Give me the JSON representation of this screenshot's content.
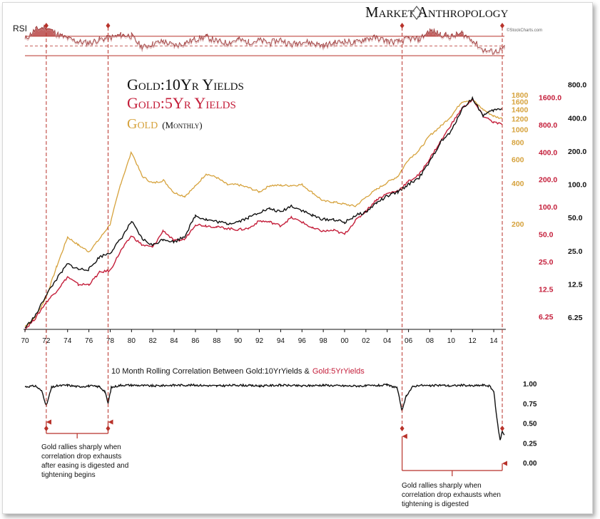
{
  "brand": {
    "name": "Market Anthropology",
    "watermark": "©StockCharts.com"
  },
  "colors": {
    "gold": "#d6a23c",
    "yield5": "#c41e3a",
    "yield10": "#111111",
    "guide": "#b8322a",
    "rsi_fill": "#b84545"
  },
  "chart_data": [
    {
      "type": "line",
      "title": "RSI",
      "ylim": [
        0,
        100
      ],
      "levels": [
        70,
        50,
        30
      ],
      "series": [
        {
          "name": "",
          "x": [
            1970,
            1971,
            1972,
            1973,
            1974,
            1975,
            1976,
            1977,
            1978,
            1979,
            1980,
            1981,
            1982,
            1983,
            1984,
            1985,
            1986,
            1987,
            1988,
            1989,
            1990,
            1991,
            1992,
            1993,
            1994,
            1995,
            1996,
            1997,
            1998,
            1999,
            2000,
            2001,
            2002,
            2003,
            2004,
            2005,
            2006,
            2007,
            2008,
            2009,
            2010,
            2011,
            2012,
            2013,
            2014,
            2015
          ],
          "values": [
            60,
            82,
            88,
            72,
            62,
            55,
            52,
            60,
            64,
            70,
            68,
            42,
            50,
            56,
            46,
            52,
            60,
            66,
            56,
            52,
            60,
            54,
            58,
            52,
            60,
            48,
            56,
            52,
            46,
            52,
            56,
            52,
            62,
            64,
            56,
            54,
            62,
            60,
            80,
            72,
            66,
            74,
            58,
            36,
            32,
            40
          ]
        }
      ]
    },
    {
      "type": "line",
      "title": "Gold:10Yr Yields / Gold:5Yr Yields / Gold (Monthly)",
      "xlabel": "",
      "ylabel": "",
      "log_scale": true,
      "x_ticks": [
        "70",
        "72",
        "74",
        "76",
        "78",
        "80",
        "82",
        "84",
        "86",
        "88",
        "90",
        "92",
        "94",
        "96",
        "98",
        "00",
        "02",
        "04",
        "06",
        "08",
        "10",
        "12",
        "14"
      ],
      "axis_gold_ticks": [
        "1800",
        "1600",
        "1400",
        "1200",
        "1000",
        "800",
        "600",
        "400",
        "200"
      ],
      "axis_5yr_ticks": [
        "1600.0",
        "800.0",
        "400.0",
        "200.0",
        "100.0",
        "50.0",
        "25.0",
        "12.5",
        "6.25"
      ],
      "axis_10yr_ticks": [
        "800.0",
        "400.0",
        "200.0",
        "100.0",
        "50.0",
        "25.0",
        "12.5",
        "6.25"
      ],
      "legend": [
        "Gold:10Yr Yields",
        "Gold:5Yr Yields",
        "Gold (Monthly)"
      ],
      "legend_note": "(Monthly)",
      "series": [
        {
          "name": "Gold (Monthly)",
          "x": [
            1970,
            1971,
            1972,
            1973,
            1974,
            1975,
            1976,
            1977,
            1978,
            1979,
            1980,
            1981,
            1982,
            1983,
            1984,
            1985,
            1986,
            1987,
            1988,
            1989,
            1990,
            1991,
            1992,
            1993,
            1994,
            1995,
            1996,
            1997,
            1998,
            1999,
            2000,
            2001,
            2002,
            2003,
            2004,
            2005,
            2006,
            2007,
            2008,
            2009,
            2010,
            2011,
            2012,
            2013,
            2014,
            2014.8
          ],
          "values": [
            35,
            41,
            58,
            98,
            160,
            140,
            125,
            155,
            200,
            400,
            680,
            450,
            400,
            420,
            340,
            320,
            380,
            470,
            440,
            390,
            390,
            370,
            345,
            385,
            385,
            385,
            390,
            340,
            295,
            290,
            280,
            270,
            315,
            360,
            405,
            450,
            600,
            700,
            900,
            1050,
            1250,
            1600,
            1650,
            1400,
            1250,
            1200
          ]
        },
        {
          "name": "Gold:5Yr Yields",
          "x": [
            1970,
            1971,
            1972,
            1973,
            1974,
            1975,
            1976,
            1977,
            1978,
            1979,
            1980,
            1981,
            1982,
            1983,
            1984,
            1985,
            1986,
            1987,
            1988,
            1989,
            1990,
            1991,
            1992,
            1993,
            1994,
            1995,
            1996,
            1997,
            1998,
            1999,
            2000,
            2001,
            2002,
            2003,
            2004,
            2005,
            2006,
            2007,
            2008,
            2009,
            2010,
            2011,
            2012,
            2013,
            2014,
            2014.8
          ],
          "values": [
            4.5,
            6,
            9,
            12,
            17,
            14,
            14,
            19,
            20,
            33,
            48,
            38,
            36,
            55,
            42,
            44,
            64,
            62,
            60,
            58,
            56,
            58,
            70,
            68,
            62,
            76,
            68,
            58,
            54,
            55,
            50,
            70,
            90,
            120,
            140,
            150,
            190,
            225,
            340,
            520,
            800,
            1200,
            1500,
            1000,
            850,
            800
          ]
        },
        {
          "name": "Gold:10Yr Yields",
          "x": [
            1970,
            1971,
            1972,
            1973,
            1974,
            1975,
            1976,
            1977,
            1978,
            1979,
            1980,
            1981,
            1982,
            1983,
            1984,
            1985,
            1986,
            1987,
            1988,
            1989,
            1990,
            1991,
            1992,
            1993,
            1994,
            1995,
            1996,
            1997,
            1998,
            1999,
            2000,
            2001,
            2002,
            2003,
            2004,
            2005,
            2006,
            2007,
            2008,
            2009,
            2010,
            2011,
            2012,
            2013,
            2014,
            2014.8
          ],
          "values": [
            5,
            6.5,
            10,
            14,
            19,
            17,
            17,
            22,
            24,
            32,
            46,
            32,
            28,
            32,
            30,
            34,
            52,
            48,
            46,
            44,
            46,
            50,
            56,
            60,
            56,
            64,
            58,
            52,
            48,
            48,
            45,
            52,
            56,
            68,
            78,
            85,
            100,
            115,
            160,
            240,
            300,
            480,
            600,
            420,
            470,
            480
          ]
        }
      ],
      "markers_x": [
        1972,
        1977.8,
        2005.4,
        2014.8
      ]
    },
    {
      "type": "line",
      "title_prefix": "10 Month Rolling Correlation Between Gold:10YrYields &",
      "title_suffix": "Gold:5YrYields",
      "ylim": [
        0,
        1
      ],
      "y_ticks": [
        "1.00",
        "0.75",
        "0.50",
        "0.25",
        "0.00"
      ],
      "series": [
        {
          "name": "",
          "x": [
            1970,
            1971,
            1971.6,
            1972,
            1972.5,
            1973,
            1974,
            1975,
            1976,
            1977,
            1977.5,
            1977.8,
            1978.1,
            1979,
            1980,
            1982,
            1984,
            1986,
            1988,
            1990,
            1992,
            1994,
            1996,
            1998,
            2000,
            2002,
            2004,
            2004.9,
            2005.2,
            2005.4,
            2005.8,
            2006.4,
            2007,
            2008,
            2009,
            2010,
            2011,
            2012,
            2013,
            2013.6,
            2014.0,
            2014.3,
            2014.6,
            2014.8,
            2015
          ],
          "values": [
            0.96,
            0.97,
            0.9,
            0.72,
            0.95,
            0.97,
            0.98,
            0.96,
            0.97,
            0.96,
            0.9,
            0.75,
            0.95,
            0.98,
            0.98,
            0.97,
            0.98,
            0.98,
            0.97,
            0.98,
            0.97,
            0.98,
            0.97,
            0.98,
            0.97,
            0.97,
            0.98,
            0.95,
            0.78,
            0.65,
            0.85,
            0.96,
            0.98,
            0.97,
            0.98,
            0.97,
            0.98,
            0.97,
            0.98,
            0.97,
            0.9,
            0.55,
            0.28,
            0.4,
            0.35
          ]
        }
      ],
      "markers_x": [
        1972,
        1977.8,
        2005.4,
        2014.8
      ]
    }
  ],
  "annotations": {
    "left": [
      "Gold rallies sharply when",
      "correlation drop exhausts",
      "after easing is digested and",
      "tightening begins"
    ],
    "right": [
      "Gold rallies sharply when",
      "correlation drop exhausts when",
      "tightening is digested"
    ]
  }
}
